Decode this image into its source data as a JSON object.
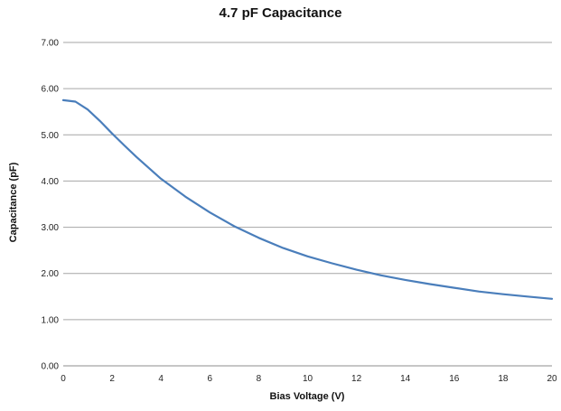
{
  "chart_data": {
    "type": "line",
    "title": "4.7 pF Capacitance",
    "xlabel": "Bias Voltage (V)",
    "ylabel": "Capacitance (pF)",
    "xlim": [
      0,
      20
    ],
    "ylim": [
      0,
      7
    ],
    "xticks": [
      "0",
      "2",
      "4",
      "6",
      "8",
      "10",
      "12",
      "14",
      "16",
      "18",
      "20"
    ],
    "yticks": [
      "0.00",
      "1.00",
      "2.00",
      "3.00",
      "4.00",
      "5.00",
      "6.00",
      "7.00"
    ],
    "grid": "horizontal",
    "legend": "none",
    "series": [
      {
        "color": "#4a7ebb",
        "x": [
          0,
          0.5,
          1,
          1.5,
          2,
          2.5,
          3,
          4,
          5,
          6,
          7,
          8,
          9,
          10,
          11,
          12,
          13,
          14,
          15,
          16,
          17,
          18,
          19,
          20
        ],
        "y": [
          5.75,
          5.72,
          5.55,
          5.3,
          5.03,
          4.77,
          4.52,
          4.05,
          3.66,
          3.32,
          3.02,
          2.77,
          2.55,
          2.37,
          2.22,
          2.08,
          1.96,
          1.86,
          1.77,
          1.69,
          1.61,
          1.55,
          1.5,
          1.45
        ]
      }
    ]
  }
}
